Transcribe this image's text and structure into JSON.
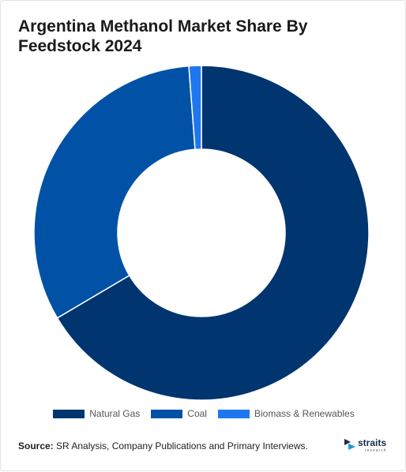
{
  "title": "Argentina Methanol Market Share By Feedstock 2024",
  "source": {
    "label": "Source:",
    "text": " SR Analysis, Company Publications and Primary Interviews."
  },
  "logo": {
    "word": "straits",
    "sub": "research"
  },
  "chart_data": {
    "type": "pie",
    "subtype": "donut",
    "title": "Argentina Methanol Market Share By Feedstock 2024",
    "categories": [
      "Natural Gas",
      "Coal",
      "Biomass & Renewables"
    ],
    "values": [
      66.5,
      32.3,
      1.2
    ],
    "colors": [
      "#00356f",
      "#0152a7",
      "#1f77f0"
    ],
    "legend_placement": "bottom"
  }
}
